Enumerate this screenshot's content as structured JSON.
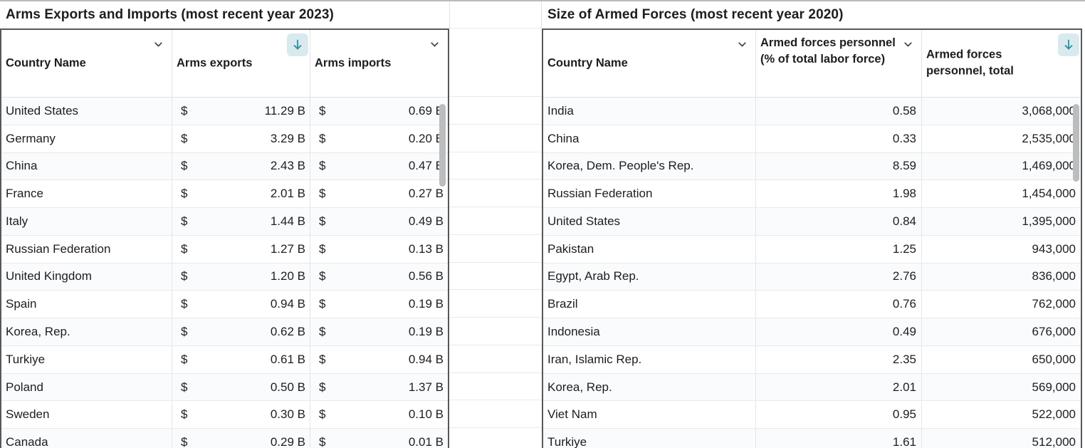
{
  "left_table": {
    "title": "Arms Exports and Imports (most recent year 2023)",
    "currency": "$",
    "col_types": [
      "text",
      "money",
      "money"
    ],
    "columns": [
      {
        "label": "Country Name",
        "icon": "chevron-down"
      },
      {
        "label": "Arms exports",
        "icon": "sort-descending"
      },
      {
        "label": "Arms imports",
        "icon": "chevron-down"
      }
    ],
    "rows": [
      [
        "United States",
        "11.29 B",
        "0.69 B"
      ],
      [
        "Germany",
        "3.29 B",
        "0.20 B"
      ],
      [
        "China",
        "2.43 B",
        "0.47 B"
      ],
      [
        "France",
        "2.01 B",
        "0.27 B"
      ],
      [
        "Italy",
        "1.44 B",
        "0.49 B"
      ],
      [
        "Russian Federation",
        "1.27 B",
        "0.13 B"
      ],
      [
        "United Kingdom",
        "1.20 B",
        "0.56 B"
      ],
      [
        "Spain",
        "0.94 B",
        "0.19 B"
      ],
      [
        "Korea, Rep.",
        "0.62 B",
        "0.19 B"
      ],
      [
        "Turkiye",
        "0.61 B",
        "0.94 B"
      ],
      [
        "Poland",
        "0.50 B",
        "1.37 B"
      ],
      [
        "Sweden",
        "0.30 B",
        "0.10 B"
      ],
      [
        "Canada",
        "0.29 B",
        "0.01 B"
      ]
    ]
  },
  "right_table": {
    "title": "Size of Armed Forces (most recent year 2020)",
    "col_types": [
      "text",
      "num",
      "num"
    ],
    "columns": [
      {
        "label": "Country Name",
        "icon": "chevron-down"
      },
      {
        "label": "Armed forces personnel (% of total labor force)",
        "icon": "chevron-down"
      },
      {
        "label": "Armed forces personnel, total",
        "icon": "sort-descending"
      }
    ],
    "rows": [
      [
        "India",
        "0.58",
        "3,068,000"
      ],
      [
        "China",
        "0.33",
        "2,535,000"
      ],
      [
        "Korea, Dem. People's Rep.",
        "8.59",
        "1,469,000"
      ],
      [
        "Russian Federation",
        "1.98",
        "1,454,000"
      ],
      [
        "United States",
        "0.84",
        "1,395,000"
      ],
      [
        "Pakistan",
        "1.25",
        "943,000"
      ],
      [
        "Egypt, Arab Rep.",
        "2.76",
        "836,000"
      ],
      [
        "Brazil",
        "0.76",
        "762,000"
      ],
      [
        "Indonesia",
        "0.49",
        "676,000"
      ],
      [
        "Iran, Islamic Rep.",
        "2.35",
        "650,000"
      ],
      [
        "Korea, Rep.",
        "2.01",
        "569,000"
      ],
      [
        "Viet Nam",
        "0.95",
        "522,000"
      ],
      [
        "Turkiye",
        "1.61",
        "512,000"
      ]
    ]
  },
  "colors": {
    "table_border": "#57585a",
    "grid_line": "#e4e5e6",
    "row_band": "#fafbfc",
    "sort_icon_bg": "#d9eaee",
    "sort_icon_arrow": "#2e93a6",
    "scrollbar_thumb": "#bcbdbe",
    "text": "#1c1d1f"
  }
}
